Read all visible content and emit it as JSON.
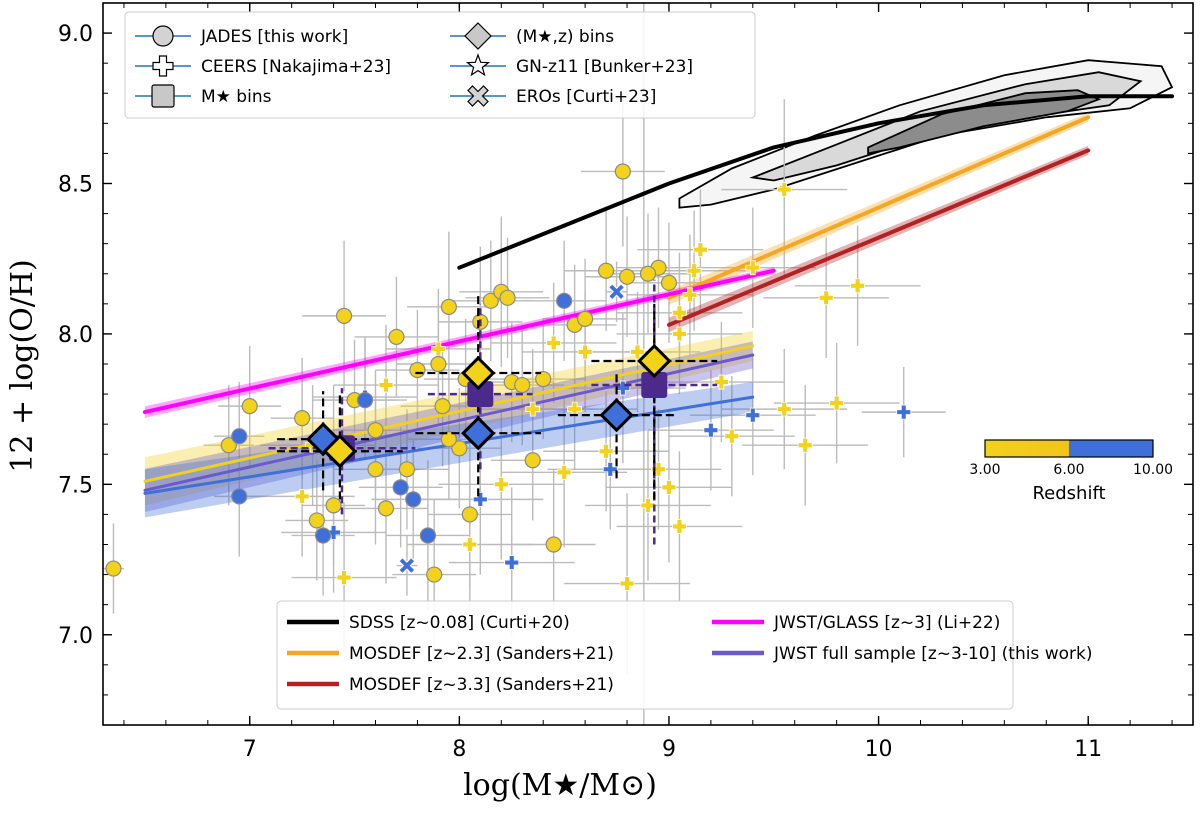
{
  "chart_data": {
    "type": "scatter",
    "xlabel": "log(M★/M⊙)",
    "ylabel": "12 + log(O/H)",
    "xlim": [
      6.3,
      11.5
    ],
    "ylim": [
      6.7,
      9.1
    ],
    "xticks": [
      {
        "value": 7,
        "label": "7"
      },
      {
        "value": 8,
        "label": "8"
      },
      {
        "value": 9,
        "label": "9"
      },
      {
        "value": 10,
        "label": "10"
      },
      {
        "value": 11,
        "label": "11"
      }
    ],
    "yticks": [
      {
        "value": 7.0,
        "label": "7.0"
      },
      {
        "value": 7.5,
        "label": "7.5"
      },
      {
        "value": 8.0,
        "label": "8.0"
      },
      {
        "value": 8.5,
        "label": "8.5"
      },
      {
        "value": 9.0,
        "label": "9.0"
      }
    ],
    "colors": {
      "low_z": "#f2d21b",
      "high_z": "#3f6fd8",
      "bins": "#4b2a8c",
      "errorbar": "#bbbbbb",
      "sdss": "#000000",
      "mosdef23": "#f5a623",
      "mosdef33": "#b22222",
      "glass": "#ff00ff",
      "jwst_full": "#6a5acd",
      "jwst_full_low": "#f0d020",
      "jwst_full_high": "#3f6fd8"
    },
    "legend_top": [
      {
        "marker": "circle",
        "label": "JADES [this work]"
      },
      {
        "marker": "diamond",
        "label": "(M★,z) bins"
      },
      {
        "marker": "plus",
        "label": "CEERS [Nakajima+23]"
      },
      {
        "marker": "star",
        "label": "GN-z11 [Bunker+23]"
      },
      {
        "marker": "square",
        "label": "M★ bins"
      },
      {
        "marker": "x",
        "label": "EROs [Curti+23]"
      }
    ],
    "legend_bottom": [
      {
        "color": "#000000",
        "label": "SDSS [z~0.08] (Curti+20)"
      },
      {
        "color": "#ff00ff",
        "label": "JWST/GLASS [z~3] (Li+22)"
      },
      {
        "color": "#f5a623",
        "label": "MOSDEF [z~2.3] (Sanders+21)"
      },
      {
        "color": "#6a5acd",
        "label": "JWST full sample [z~3-10] (this work)"
      },
      {
        "color": "#b22222",
        "label": "MOSDEF [z~3.3] (Sanders+21)"
      }
    ],
    "colorbar": {
      "title": "Redshift",
      "min_label": "3.00",
      "mid_label": "6.00",
      "max_label": "10.00",
      "min": 3,
      "mid": 6,
      "max": 10
    },
    "lines": [
      {
        "name": "SDSS [z~0.08] (Curti+20)",
        "color": "#000000",
        "width": 4,
        "x": [
          8.0,
          8.5,
          9.0,
          9.5,
          10.0,
          10.5,
          11.0,
          11.4
        ],
        "y": [
          8.22,
          8.36,
          8.5,
          8.62,
          8.7,
          8.76,
          8.79,
          8.79
        ]
      },
      {
        "name": "MOSDEF [z~2.3] (Sanders+21)",
        "color": "#f5a623",
        "width": 4,
        "x": [
          9.0,
          11.0
        ],
        "y": [
          8.12,
          8.72
        ],
        "band": 0.015
      },
      {
        "name": "MOSDEF [z~3.3] (Sanders+21)",
        "color": "#b22222",
        "width": 4,
        "x": [
          9.0,
          11.0
        ],
        "y": [
          8.03,
          8.61
        ],
        "band": 0.015
      },
      {
        "name": "JWST/GLASS [z~3] (Li+22)",
        "color": "#ff00ff",
        "width": 4,
        "x": [
          6.5,
          9.5
        ],
        "y": [
          7.74,
          8.21
        ],
        "band": 0.012
      },
      {
        "name": "low-z fit",
        "color": "#f0d020",
        "width": 3,
        "x": [
          6.5,
          9.4
        ],
        "y": [
          7.51,
          7.96
        ],
        "band": 0.05
      },
      {
        "name": "JWST full sample [z~3-10] (this work)",
        "color": "#6a5acd",
        "width": 3,
        "x": [
          6.5,
          9.4
        ],
        "y": [
          7.48,
          7.93
        ],
        "band": 0.045
      },
      {
        "name": "high-z fit",
        "color": "#3f6fd8",
        "width": 3,
        "x": [
          6.5,
          9.4
        ],
        "y": [
          7.47,
          7.79
        ],
        "band": 0.05
      }
    ],
    "sdss_contours": {
      "outer": [
        [
          9.05,
          8.45
        ],
        [
          9.3,
          8.55
        ],
        [
          9.7,
          8.66
        ],
        [
          10.1,
          8.76
        ],
        [
          10.6,
          8.86
        ],
        [
          11.0,
          8.91
        ],
        [
          11.35,
          8.89
        ],
        [
          11.4,
          8.82
        ],
        [
          11.2,
          8.75
        ],
        [
          10.8,
          8.72
        ],
        [
          10.3,
          8.66
        ],
        [
          9.9,
          8.57
        ],
        [
          9.5,
          8.48
        ],
        [
          9.2,
          8.43
        ],
        [
          9.05,
          8.42
        ]
      ],
      "middle": [
        [
          9.4,
          8.52
        ],
        [
          9.8,
          8.63
        ],
        [
          10.2,
          8.74
        ],
        [
          10.7,
          8.83
        ],
        [
          11.05,
          8.87
        ],
        [
          11.25,
          8.84
        ],
        [
          11.1,
          8.76
        ],
        [
          10.7,
          8.72
        ],
        [
          10.2,
          8.65
        ],
        [
          9.8,
          8.56
        ],
        [
          9.5,
          8.51
        ]
      ],
      "inner": [
        [
          9.95,
          8.62
        ],
        [
          10.3,
          8.73
        ],
        [
          10.7,
          8.8
        ],
        [
          10.95,
          8.81
        ],
        [
          11.05,
          8.78
        ],
        [
          10.9,
          8.74
        ],
        [
          10.5,
          8.69
        ],
        [
          10.1,
          8.62
        ],
        [
          9.95,
          8.6
        ]
      ]
    },
    "jades": [
      {
        "x": 6.35,
        "y": 7.22,
        "z": 4.0,
        "ex": 0.05,
        "ey": 0.15
      },
      {
        "x": 6.9,
        "y": 7.63,
        "z": 5.0,
        "ex": 0.12,
        "ey": 0.2
      },
      {
        "x": 6.95,
        "y": 7.66,
        "z": 7.5,
        "ex": 0.12,
        "ey": 0.18
      },
      {
        "x": 6.95,
        "y": 7.46,
        "z": 8.0,
        "ex": 0.12,
        "ey": 0.2
      },
      {
        "x": 7.0,
        "y": 7.76,
        "z": 4.0,
        "ex": 0.15,
        "ey": 0.2
      },
      {
        "x": 7.25,
        "y": 7.72,
        "z": 4.5,
        "ex": 0.15,
        "ey": 0.2
      },
      {
        "x": 7.32,
        "y": 7.38,
        "z": 5.0,
        "ex": 0.15,
        "ey": 0.2
      },
      {
        "x": 7.35,
        "y": 7.33,
        "z": 8.0,
        "ex": 0.15,
        "ey": 0.2
      },
      {
        "x": 7.4,
        "y": 7.43,
        "z": 5.0,
        "ex": 0.15,
        "ey": 0.2
      },
      {
        "x": 7.45,
        "y": 8.06,
        "z": 4.5,
        "ex": 0.2,
        "ey": 0.25
      },
      {
        "x": 7.5,
        "y": 7.78,
        "z": 5.0,
        "ex": 0.2,
        "ey": 0.2
      },
      {
        "x": 7.55,
        "y": 7.78,
        "z": 7.0,
        "ex": 0.2,
        "ey": 0.2
      },
      {
        "x": 7.6,
        "y": 7.55,
        "z": 4.0,
        "ex": 0.2,
        "ey": 0.25
      },
      {
        "x": 7.65,
        "y": 7.42,
        "z": 5.0,
        "ex": 0.2,
        "ey": 0.25
      },
      {
        "x": 7.7,
        "y": 7.99,
        "z": 4.0,
        "ex": 0.2,
        "ey": 0.2
      },
      {
        "x": 7.72,
        "y": 7.49,
        "z": 7.0,
        "ex": 0.2,
        "ey": 0.2
      },
      {
        "x": 7.75,
        "y": 7.55,
        "z": 4.5,
        "ex": 0.2,
        "ey": 0.2
      },
      {
        "x": 7.78,
        "y": 7.45,
        "z": 8.5,
        "ex": 0.2,
        "ey": 0.2
      },
      {
        "x": 7.8,
        "y": 7.88,
        "z": 5.0,
        "ex": 0.2,
        "ey": 0.2
      },
      {
        "x": 7.85,
        "y": 7.33,
        "z": 8.0,
        "ex": 0.2,
        "ey": 0.25
      },
      {
        "x": 7.88,
        "y": 7.2,
        "z": 4.5,
        "ex": 0.2,
        "ey": 0.25
      },
      {
        "x": 7.9,
        "y": 7.9,
        "z": 4.0,
        "ex": 0.2,
        "ey": 0.2
      },
      {
        "x": 7.92,
        "y": 7.76,
        "z": 5.0,
        "ex": 0.2,
        "ey": 0.2
      },
      {
        "x": 7.95,
        "y": 8.09,
        "z": 4.5,
        "ex": 0.2,
        "ey": 0.25
      },
      {
        "x": 8.0,
        "y": 7.62,
        "z": 4.0,
        "ex": 0.2,
        "ey": 0.2
      },
      {
        "x": 8.03,
        "y": 7.85,
        "z": 4.5,
        "ex": 0.2,
        "ey": 0.2
      },
      {
        "x": 8.05,
        "y": 7.4,
        "z": 5.0,
        "ex": 0.2,
        "ey": 0.25
      },
      {
        "x": 8.1,
        "y": 8.04,
        "z": 4.5,
        "ex": 0.2,
        "ey": 0.25
      },
      {
        "x": 8.15,
        "y": 8.11,
        "z": 4.0,
        "ex": 0.2,
        "ey": 0.2
      },
      {
        "x": 8.2,
        "y": 8.14,
        "z": 5.0,
        "ex": 0.2,
        "ey": 0.25
      },
      {
        "x": 8.23,
        "y": 8.12,
        "z": 4.5,
        "ex": 0.2,
        "ey": 0.2
      },
      {
        "x": 8.25,
        "y": 7.84,
        "z": 4.0,
        "ex": 0.2,
        "ey": 0.2
      },
      {
        "x": 8.3,
        "y": 7.83,
        "z": 4.5,
        "ex": 0.2,
        "ey": 0.2
      },
      {
        "x": 8.35,
        "y": 7.58,
        "z": 4.0,
        "ex": 0.2,
        "ey": 0.2
      },
      {
        "x": 8.4,
        "y": 7.85,
        "z": 5.0,
        "ex": 0.2,
        "ey": 0.2
      },
      {
        "x": 8.45,
        "y": 7.3,
        "z": 4.5,
        "ex": 0.2,
        "ey": 0.25
      },
      {
        "x": 8.5,
        "y": 8.11,
        "z": 7.5,
        "ex": 0.2,
        "ey": 0.2
      },
      {
        "x": 8.55,
        "y": 8.03,
        "z": 4.5,
        "ex": 0.2,
        "ey": 0.2
      },
      {
        "x": 8.6,
        "y": 8.05,
        "z": 5.0,
        "ex": 0.2,
        "ey": 0.2
      },
      {
        "x": 8.7,
        "y": 8.21,
        "z": 4.0,
        "ex": 0.2,
        "ey": 0.2
      },
      {
        "x": 8.78,
        "y": 8.54,
        "z": 4.5,
        "ex": 0.2,
        "ey": 0.25
      },
      {
        "x": 8.8,
        "y": 8.19,
        "z": 5.0,
        "ex": 0.2,
        "ey": 0.2
      },
      {
        "x": 8.95,
        "y": 8.22,
        "z": 4.0,
        "ex": 0.2,
        "ey": 0.2
      },
      {
        "x": 8.9,
        "y": 8.2,
        "z": 4.5,
        "ex": 0.2,
        "ey": 0.2
      },
      {
        "x": 9.0,
        "y": 8.17,
        "z": 5.0,
        "ex": 0.2,
        "ey": 0.2
      },
      {
        "x": 7.4,
        "y": 7.63,
        "z": 4.0,
        "ex": 0.2,
        "ey": 0.2
      },
      {
        "x": 7.6,
        "y": 7.68,
        "z": 4.0,
        "ex": 0.2,
        "ey": 0.2
      },
      {
        "x": 7.95,
        "y": 7.65,
        "z": 4.5,
        "ex": 0.2,
        "ey": 0.2
      }
    ],
    "ceers": [
      {
        "x": 7.25,
        "y": 7.46,
        "z": 5.0,
        "ex": 0.25,
        "ey": 0.2
      },
      {
        "x": 7.3,
        "y": 7.63,
        "z": 4.5,
        "ex": 0.25,
        "ey": 0.2
      },
      {
        "x": 7.4,
        "y": 7.34,
        "z": 8.0,
        "ex": 0.25,
        "ey": 0.2
      },
      {
        "x": 7.45,
        "y": 7.19,
        "z": 4.5,
        "ex": 0.25,
        "ey": 0.25
      },
      {
        "x": 7.55,
        "y": 7.79,
        "z": 7.5,
        "ex": 0.25,
        "ey": 0.2
      },
      {
        "x": 7.65,
        "y": 7.83,
        "z": 4.0,
        "ex": 0.25,
        "ey": 0.2
      },
      {
        "x": 7.9,
        "y": 7.95,
        "z": 5.0,
        "ex": 0.25,
        "ey": 0.2
      },
      {
        "x": 8.05,
        "y": 7.3,
        "z": 5.0,
        "ex": 0.3,
        "ey": 0.25
      },
      {
        "x": 8.2,
        "y": 7.5,
        "z": 4.5,
        "ex": 0.3,
        "ey": 0.25
      },
      {
        "x": 8.25,
        "y": 7.24,
        "z": 8.0,
        "ex": 0.3,
        "ey": 0.25
      },
      {
        "x": 8.1,
        "y": 7.45,
        "z": 7.5,
        "ex": 0.3,
        "ey": 0.25
      },
      {
        "x": 8.35,
        "y": 7.75,
        "z": 4.0,
        "ex": 0.3,
        "ey": 0.2
      },
      {
        "x": 8.45,
        "y": 7.97,
        "z": 4.5,
        "ex": 0.3,
        "ey": 0.2
      },
      {
        "x": 8.5,
        "y": 7.54,
        "z": 5.0,
        "ex": 0.3,
        "ey": 0.25
      },
      {
        "x": 8.55,
        "y": 7.75,
        "z": 4.5,
        "ex": 0.3,
        "ey": 0.2
      },
      {
        "x": 8.6,
        "y": 7.94,
        "z": 5.0,
        "ex": 0.3,
        "ey": 0.2
      },
      {
        "x": 8.7,
        "y": 7.61,
        "z": 4.0,
        "ex": 0.3,
        "ey": 0.2
      },
      {
        "x": 8.72,
        "y": 7.55,
        "z": 7.5,
        "ex": 0.3,
        "ey": 0.2
      },
      {
        "x": 8.78,
        "y": 7.82,
        "z": 8.0,
        "ex": 0.3,
        "ey": 0.25
      },
      {
        "x": 8.8,
        "y": 7.17,
        "z": 5.0,
        "ex": 0.3,
        "ey": 0.3
      },
      {
        "x": 8.85,
        "y": 7.94,
        "z": 4.5,
        "ex": 0.3,
        "ey": 0.2
      },
      {
        "x": 8.9,
        "y": 7.43,
        "z": 4.0,
        "ex": 0.3,
        "ey": 0.25
      },
      {
        "x": 8.95,
        "y": 7.55,
        "z": 5.0,
        "ex": 0.3,
        "ey": 0.2
      },
      {
        "x": 9.0,
        "y": 7.49,
        "z": 4.0,
        "ex": 0.3,
        "ey": 0.25
      },
      {
        "x": 9.05,
        "y": 7.36,
        "z": 4.5,
        "ex": 0.3,
        "ey": 0.25
      },
      {
        "x": 9.05,
        "y": 8.07,
        "z": 5.0,
        "ex": 0.3,
        "ey": 0.2
      },
      {
        "x": 9.1,
        "y": 8.13,
        "z": 4.0,
        "ex": 0.3,
        "ey": 0.2
      },
      {
        "x": 9.12,
        "y": 8.21,
        "z": 4.5,
        "ex": 0.3,
        "ey": 0.2
      },
      {
        "x": 9.15,
        "y": 8.28,
        "z": 4.0,
        "ex": 0.3,
        "ey": 0.2
      },
      {
        "x": 9.2,
        "y": 7.68,
        "z": 8.0,
        "ex": 0.3,
        "ey": 0.2
      },
      {
        "x": 9.25,
        "y": 7.84,
        "z": 4.5,
        "ex": 0.3,
        "ey": 0.2
      },
      {
        "x": 9.3,
        "y": 7.66,
        "z": 4.0,
        "ex": 0.3,
        "ey": 0.2
      },
      {
        "x": 9.4,
        "y": 7.73,
        "z": 8.0,
        "ex": 0.3,
        "ey": 0.2
      },
      {
        "x": 9.4,
        "y": 8.22,
        "z": 4.5,
        "ex": 0.3,
        "ey": 0.2
      },
      {
        "x": 9.55,
        "y": 8.48,
        "z": 4.0,
        "ex": 0.3,
        "ey": 0.3
      },
      {
        "x": 9.55,
        "y": 7.75,
        "z": 4.5,
        "ex": 0.3,
        "ey": 0.2
      },
      {
        "x": 9.65,
        "y": 7.63,
        "z": 5.0,
        "ex": 0.3,
        "ey": 0.2
      },
      {
        "x": 9.8,
        "y": 7.77,
        "z": 4.0,
        "ex": 0.3,
        "ey": 0.2
      },
      {
        "x": 9.75,
        "y": 8.12,
        "z": 4.5,
        "ex": 0.3,
        "ey": 0.2
      },
      {
        "x": 9.9,
        "y": 8.16,
        "z": 4.0,
        "ex": 0.3,
        "ey": 0.2
      },
      {
        "x": 10.12,
        "y": 7.74,
        "z": 8.0,
        "ex": 0.2,
        "ey": 0.15
      },
      {
        "x": 9.05,
        "y": 8.0,
        "z": 4.5,
        "ex": 0.3,
        "ey": 0.2
      }
    ],
    "eros": [
      {
        "x": 7.75,
        "y": 7.23,
        "z": 8.0,
        "ex": 0.05,
        "ey": 0.1
      },
      {
        "x": 8.75,
        "y": 8.14,
        "z": 8.0,
        "ex": 0.05,
        "ey": 0.1
      }
    ],
    "mstar_bins": [
      {
        "x": 7.44,
        "y": 7.62,
        "xerr": 0.35,
        "ylo": 7.4,
        "yhi": 7.82
      },
      {
        "x": 8.1,
        "y": 7.8,
        "xerr": 0.25,
        "ylo": 7.55,
        "yhi": 8.1
      },
      {
        "x": 8.93,
        "y": 7.83,
        "xerr": 0.3,
        "ylo": 7.3,
        "yhi": 8.18
      }
    ],
    "mz_bins": [
      {
        "x": 7.35,
        "y": 7.65,
        "z": 8.0,
        "xerr": 0.22,
        "ylo": 7.48,
        "yhi": 7.81
      },
      {
        "x": 7.43,
        "y": 7.61,
        "z": 4.5,
        "xerr": 0.3,
        "ylo": 7.45,
        "yhi": 7.8
      },
      {
        "x": 8.09,
        "y": 7.87,
        "z": 4.5,
        "xerr": 0.3,
        "ylo": 7.7,
        "yhi": 8.13
      },
      {
        "x": 8.09,
        "y": 7.67,
        "z": 8.0,
        "xerr": 0.3,
        "ylo": 7.46,
        "yhi": 7.87
      },
      {
        "x": 8.75,
        "y": 7.73,
        "z": 8.0,
        "xerr": 0.28,
        "ylo": 7.52,
        "yhi": 7.87
      },
      {
        "x": 8.93,
        "y": 7.91,
        "z": 4.5,
        "xerr": 0.3,
        "ylo": 7.45,
        "yhi": 8.1
      }
    ]
  }
}
